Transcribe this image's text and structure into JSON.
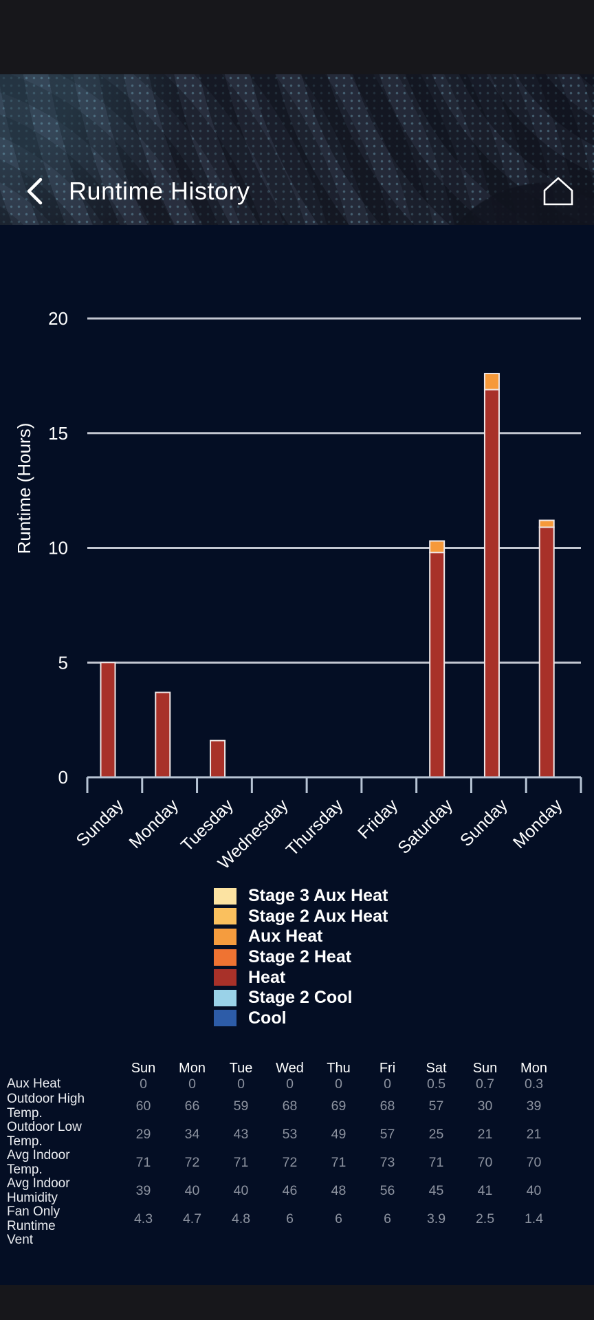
{
  "header": {
    "title": "Runtime History",
    "back_icon": "chevron-left",
    "home_icon": "home-outline"
  },
  "chart_data": {
    "type": "bar",
    "stacked": true,
    "title": "",
    "xlabel": "",
    "ylabel": "Runtime (Hours)",
    "ylim": [
      0,
      20
    ],
    "yticks": [
      0,
      5,
      10,
      15,
      20
    ],
    "grid": true,
    "legend_position": "below",
    "categories": [
      "Sunday",
      "Monday",
      "Tuesday",
      "Wednesday",
      "Thursday",
      "Friday",
      "Saturday",
      "Sunday",
      "Monday"
    ],
    "series": [
      {
        "name": "Heat",
        "color": "#a83129",
        "values": [
          5,
          3.7,
          1.6,
          0,
          0,
          0,
          9.8,
          16.9,
          10.9
        ]
      },
      {
        "name": "Aux Heat",
        "color": "#f6993a",
        "values": [
          0,
          0,
          0,
          0,
          0,
          0,
          0.5,
          0.7,
          0.3
        ]
      }
    ]
  },
  "legend": {
    "items": [
      {
        "label": "Stage 3 Aux Heat",
        "color": "#fce3a2"
      },
      {
        "label": "Stage 2 Aux Heat",
        "color": "#fac05e"
      },
      {
        "label": "Aux Heat",
        "color": "#f59c3e"
      },
      {
        "label": "Stage 2 Heat",
        "color": "#ef7332"
      },
      {
        "label": "Heat",
        "color": "#a83129"
      },
      {
        "label": "Stage 2 Cool",
        "color": "#9ad2e8"
      },
      {
        "label": "Cool",
        "color": "#2d5ca8"
      }
    ]
  },
  "table": {
    "columns": [
      "Sun",
      "Mon",
      "Tue",
      "Wed",
      "Thu",
      "Fri",
      "Sat",
      "Sun",
      "Mon"
    ],
    "rows": [
      {
        "label": "Aux Heat",
        "values": [
          "0",
          "0",
          "0",
          "0",
          "0",
          "0",
          "0.5",
          "0.7",
          "0.3"
        ]
      },
      {
        "label": "Outdoor High Temp.",
        "values": [
          "60",
          "66",
          "59",
          "68",
          "69",
          "68",
          "57",
          "30",
          "39"
        ]
      },
      {
        "label": "Outdoor Low Temp.",
        "values": [
          "29",
          "34",
          "43",
          "53",
          "49",
          "57",
          "25",
          "21",
          "21"
        ]
      },
      {
        "label": "Avg Indoor Temp.",
        "values": [
          "71",
          "72",
          "71",
          "72",
          "71",
          "73",
          "71",
          "70",
          "70"
        ]
      },
      {
        "label": "Avg Indoor Humidity",
        "values": [
          "39",
          "40",
          "40",
          "46",
          "48",
          "56",
          "45",
          "41",
          "40"
        ]
      },
      {
        "label": "Fan Only Runtime",
        "values": [
          "4.3",
          "4.7",
          "4.8",
          "6",
          "6",
          "6",
          "3.9",
          "2.5",
          "1.4"
        ]
      },
      {
        "label": "Vent",
        "values": [
          "",
          "",
          "",
          "",
          "",
          "",
          "",
          "",
          ""
        ]
      }
    ]
  },
  "colors": {
    "content_background": "#040e24",
    "letterbox": "#17171b",
    "banner_background": "#252b3a",
    "gridline": "#c3c7d1",
    "axis": "#b7c4d4",
    "bar_outline": "#efe7e7",
    "text_primary": "#ffffff",
    "text_secondary": "#8d93a0"
  }
}
